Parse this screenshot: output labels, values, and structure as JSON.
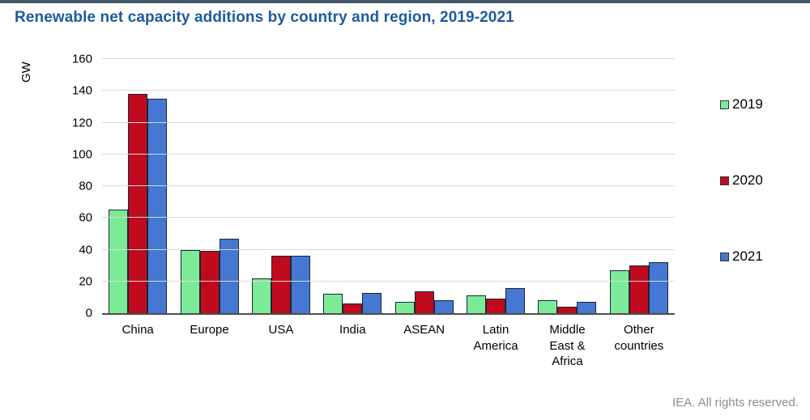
{
  "page": {
    "title": "Renewable net capacity additions by country and region, 2019-2021",
    "footer": "IEA. All rights reserved.",
    "colors": {
      "title_text": "#1E5B9E",
      "top_rule": "#44596A",
      "gridline": "#D9D9D9",
      "axis_line": "#4D4D4D",
      "footer_text": "#8C8C8C"
    }
  },
  "chart_data": {
    "type": "bar",
    "title": "Renewable net capacity additions by country and region, 2019-2021",
    "xlabel": "",
    "ylabel": "GW",
    "ylim": [
      0,
      160
    ],
    "ytick_step": 20,
    "grid": "horizontal",
    "legend_position": "right",
    "categories": [
      "China",
      "Europe",
      "USA",
      "India",
      "ASEAN",
      "Latin America",
      "Middle East & Africa",
      "Other countries"
    ],
    "series": [
      {
        "name": "2019",
        "color": "#7CEB98",
        "values": [
          65,
          40,
          22,
          12,
          7,
          11,
          8,
          27
        ]
      },
      {
        "name": "2020",
        "color": "#C00B1E",
        "values": [
          138,
          39,
          36,
          6,
          14,
          9,
          4,
          30
        ]
      },
      {
        "name": "2021",
        "color": "#4577D3",
        "values": [
          135,
          47,
          36,
          13,
          8,
          16,
          7,
          32
        ]
      }
    ]
  }
}
